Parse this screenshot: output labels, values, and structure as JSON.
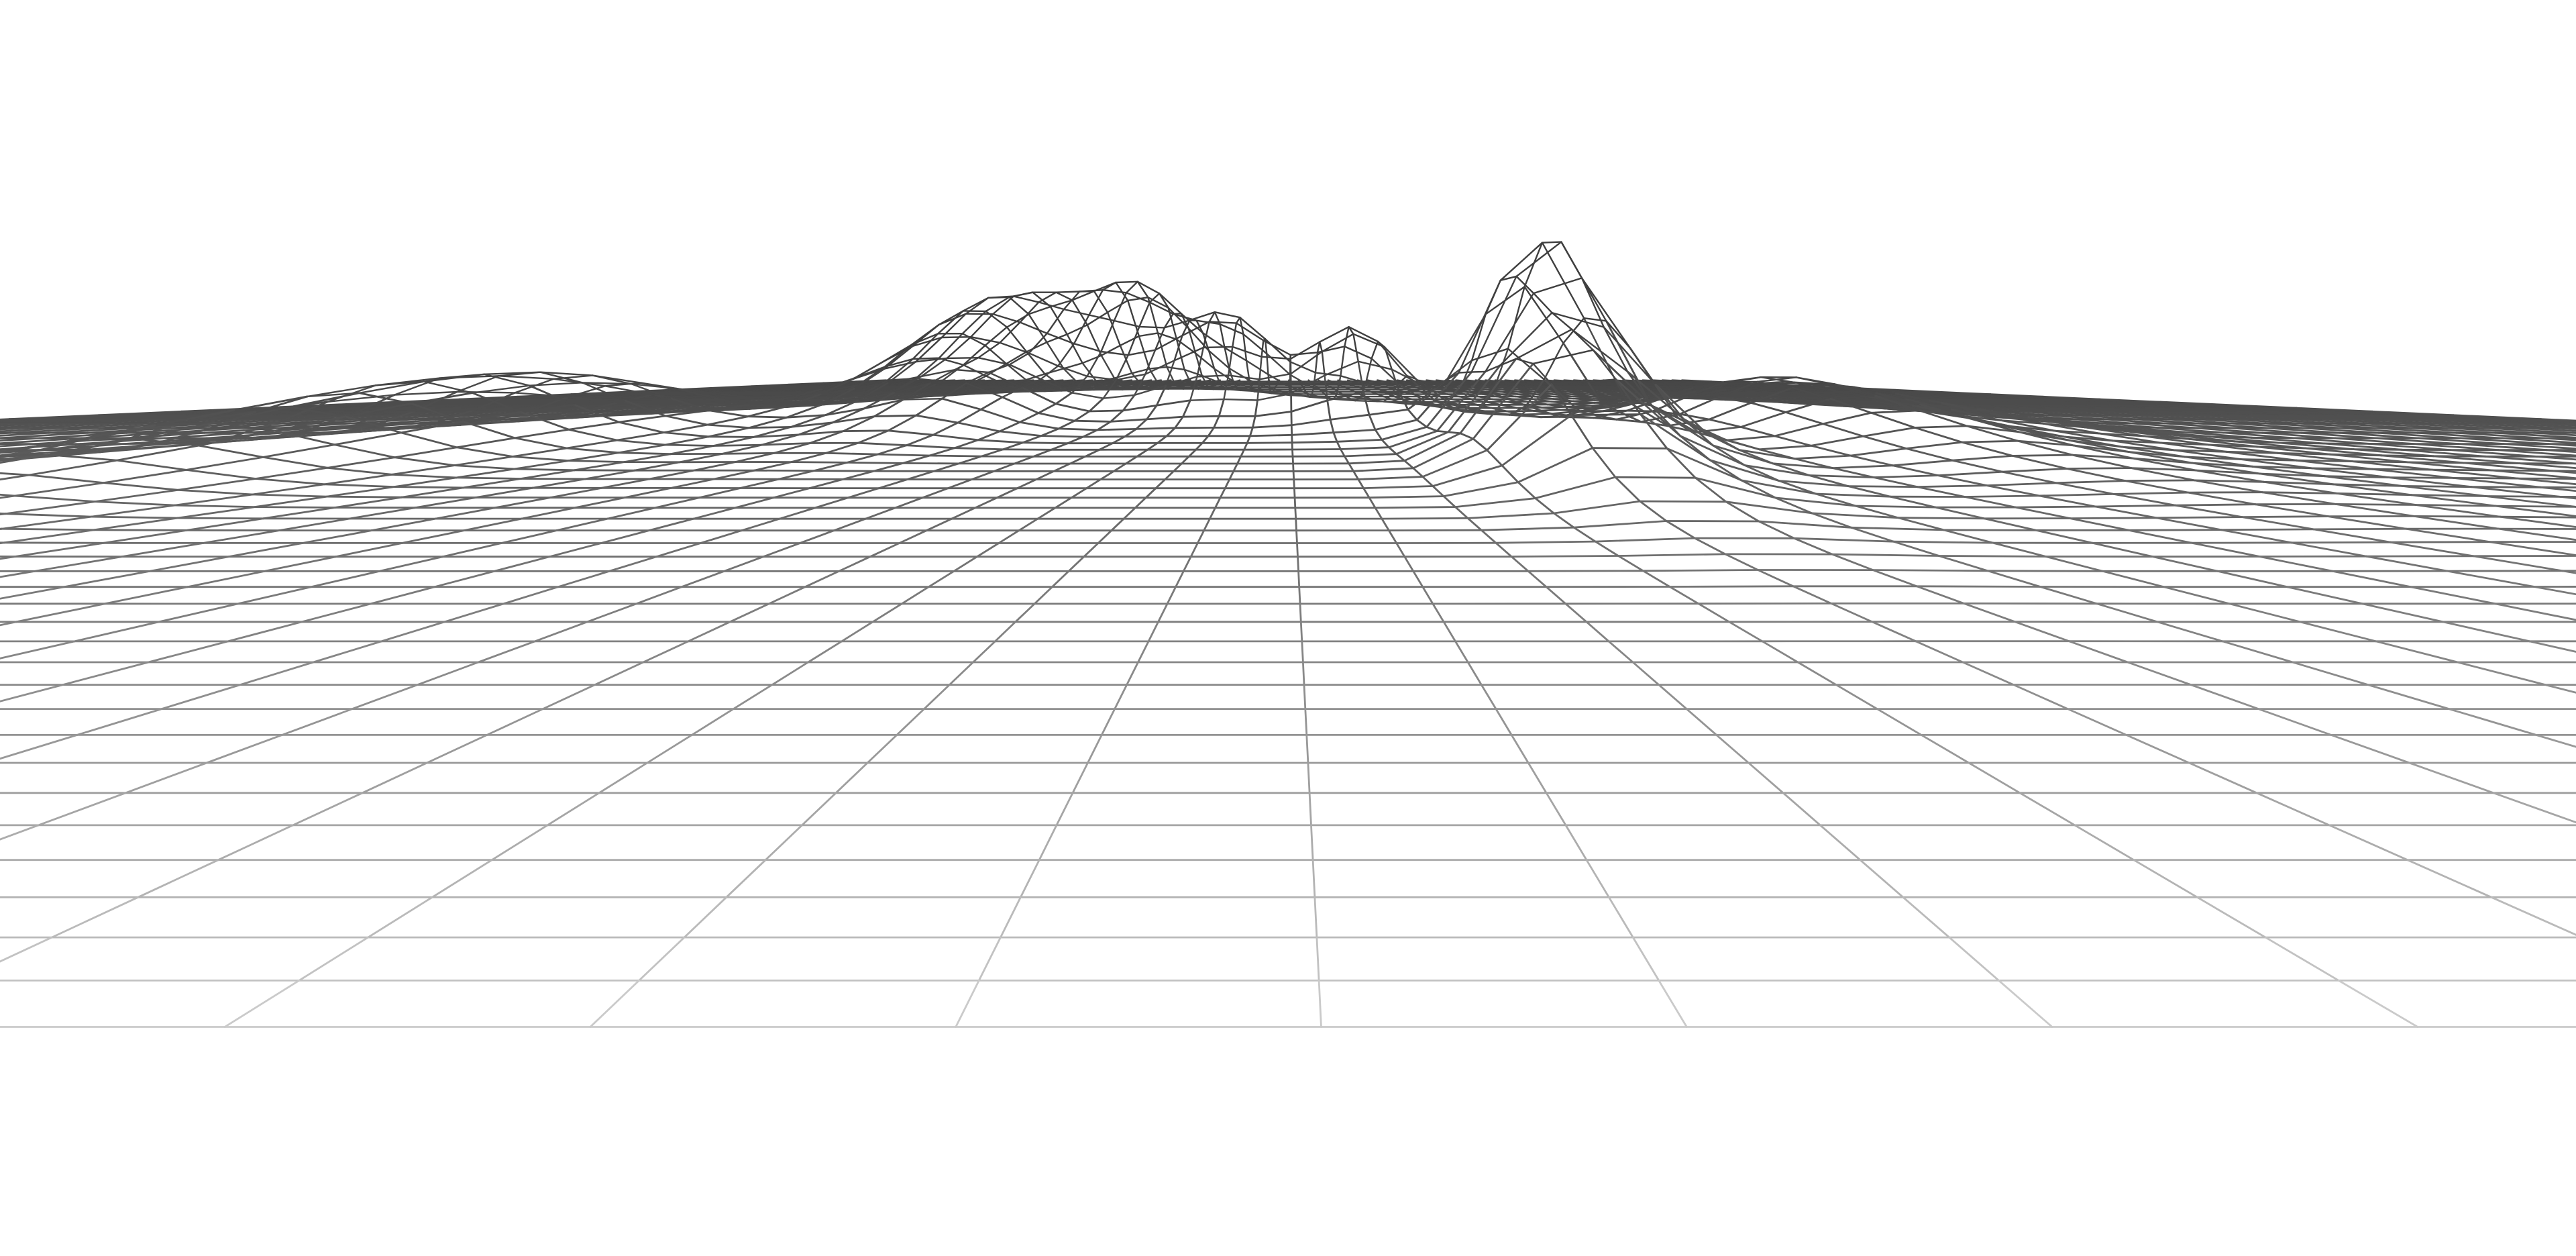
{
  "scene": {
    "subject": "wireframe-terrain",
    "background_color": "#ffffff",
    "line_color_far": "#3f3f3f",
    "line_color_near": "#f2f2f2"
  }
}
